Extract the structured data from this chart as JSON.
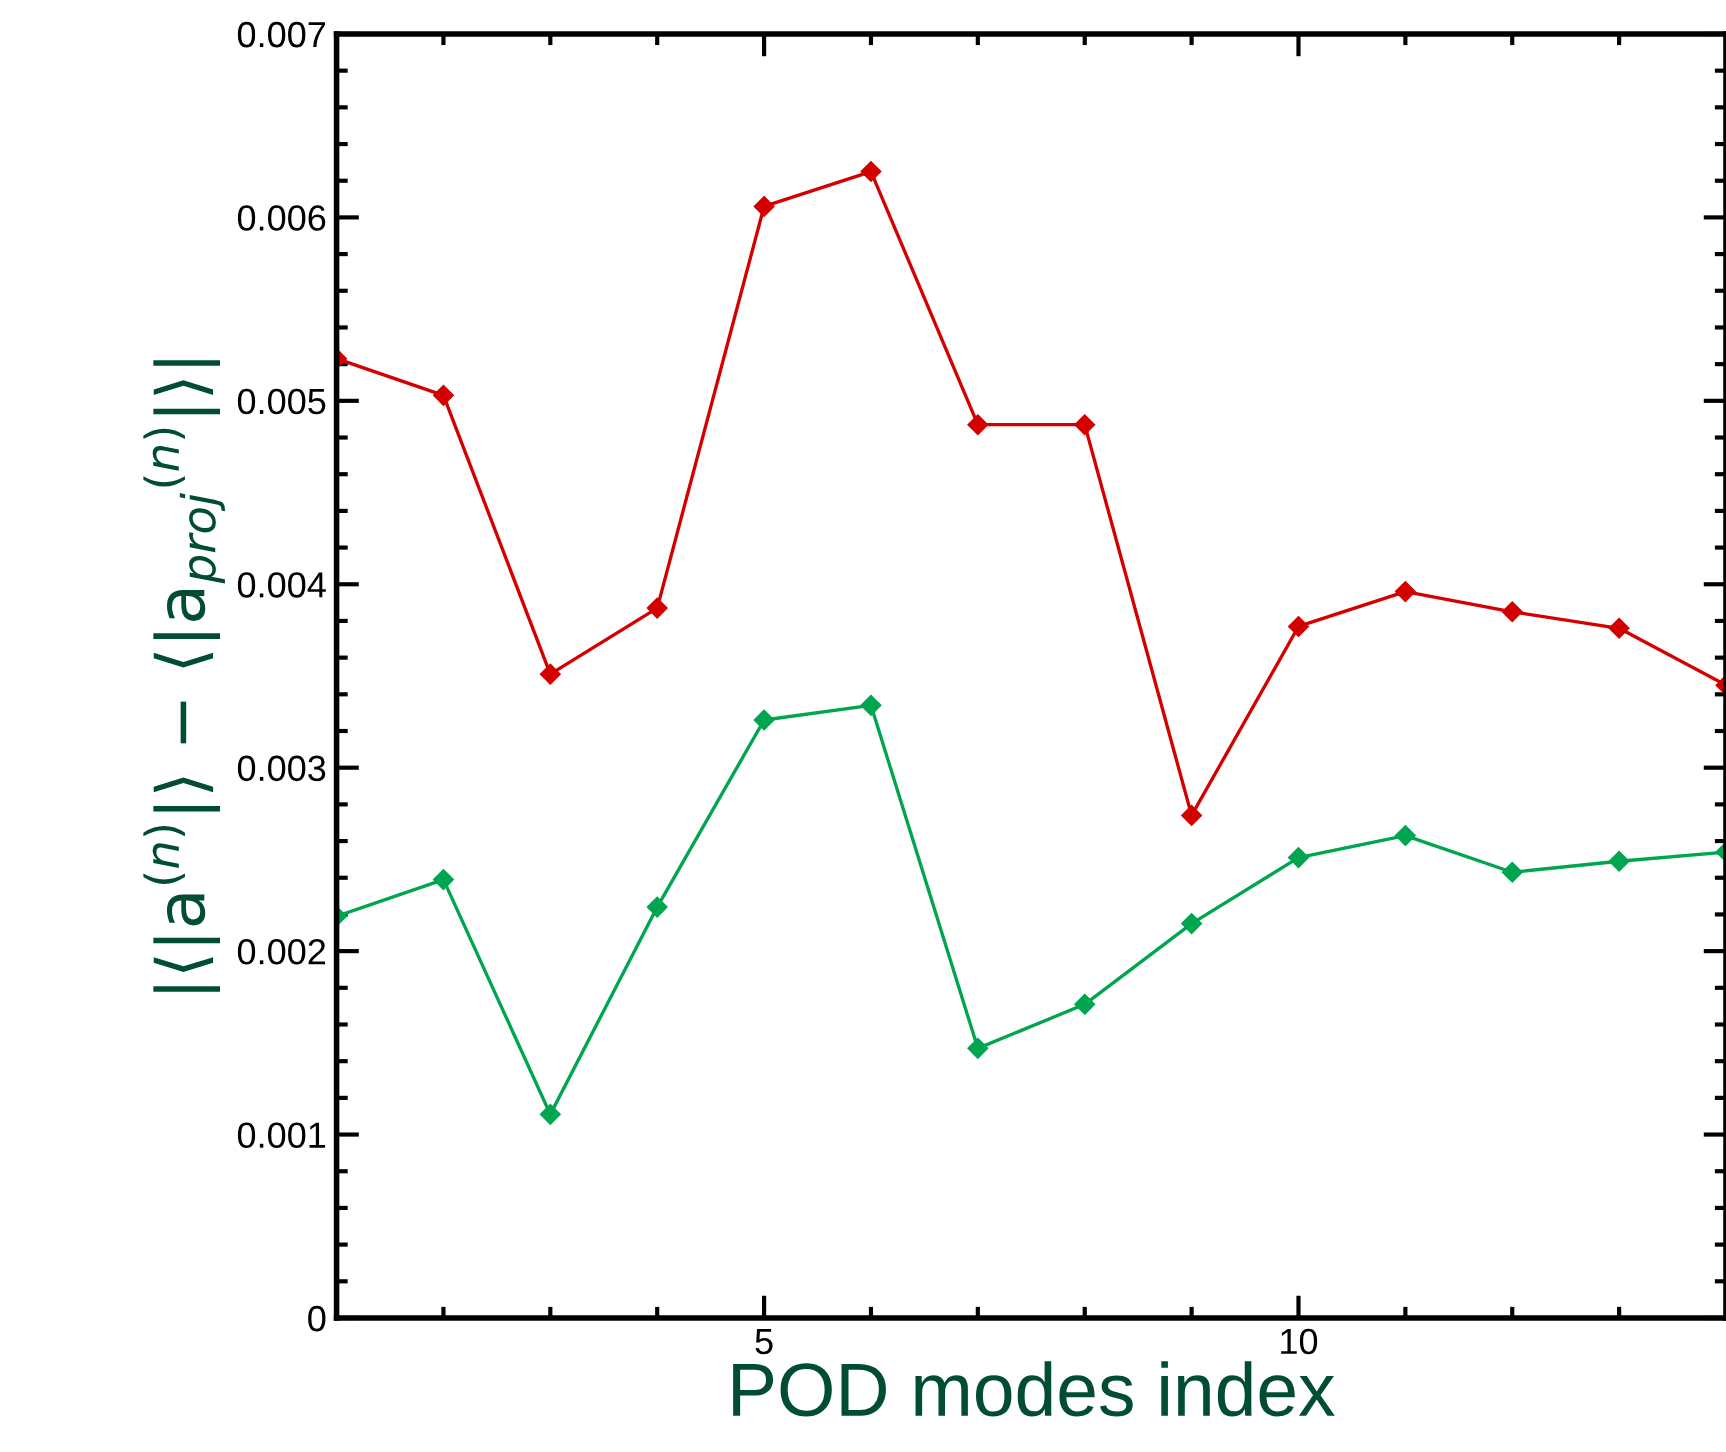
{
  "chart_data": {
    "type": "line",
    "xlabel": "POD modes index",
    "ylabel": "|⟨|a$^{(n)}$|⟩ − ⟨|a$_{proj}$$^{(n)}$|⟩|",
    "x": [
      1,
      2,
      3,
      4,
      5,
      6,
      7,
      8,
      9,
      10,
      11,
      12,
      13,
      14
    ],
    "series": [
      {
        "color": "#d40000",
        "values": [
          0.00523,
          0.00503,
          0.00351,
          0.00387,
          0.00606,
          0.00625,
          0.00487,
          0.00487,
          0.00274,
          0.00377,
          0.00396,
          0.00385,
          0.00376,
          0.00345
        ]
      },
      {
        "color": "#00a550",
        "values": [
          0.00219,
          0.00239,
          0.00111,
          0.00224,
          0.00326,
          0.00334,
          0.00147,
          0.00171,
          0.00215,
          0.00251,
          0.00263,
          0.00243,
          0.00249,
          0.00254
        ]
      }
    ],
    "xlim": [
      1,
      14
    ],
    "ylim": [
      0,
      0.007
    ],
    "xticks": [
      5,
      10
    ],
    "yticks": [
      {
        "value": 0,
        "label": "0"
      },
      0.001,
      0.002,
      0.003,
      0.004,
      0.005,
      0.006,
      0.007
    ],
    "marker": "diamond",
    "line_style": "solid",
    "grid": false,
    "legend": false
  }
}
